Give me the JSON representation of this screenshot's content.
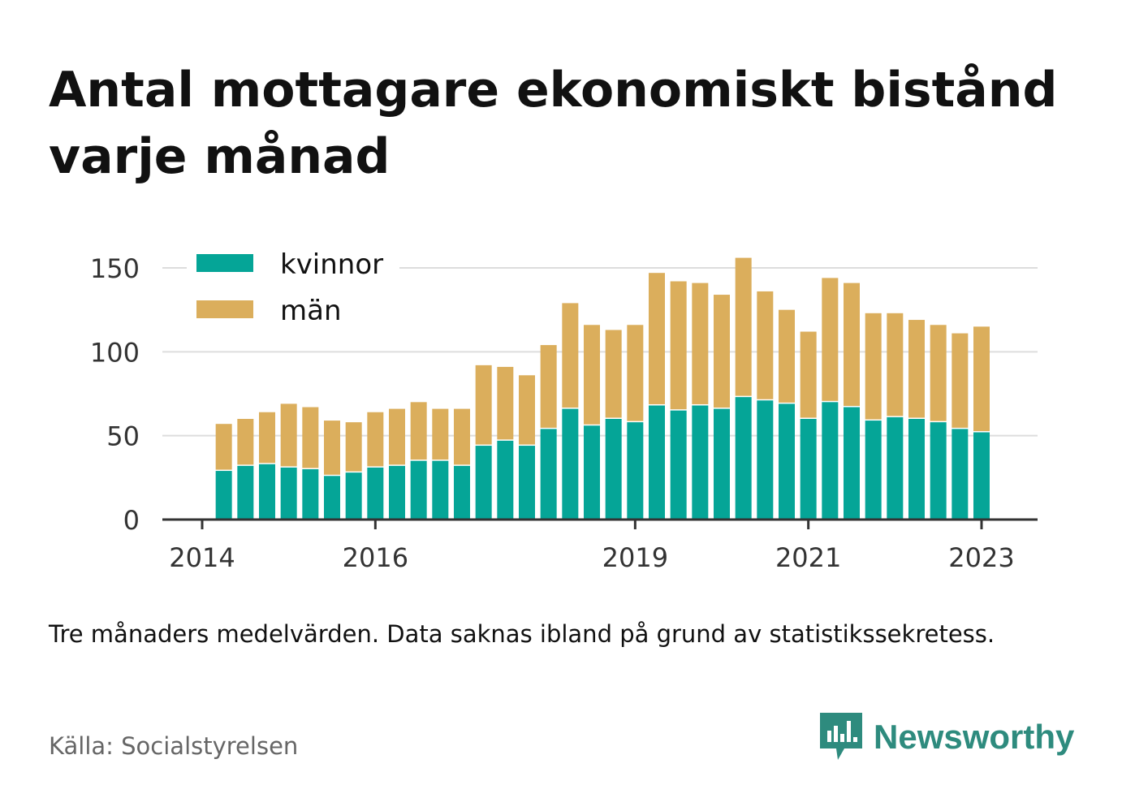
{
  "title": "Antal mottagare ekonomiskt bistånd varje månad",
  "note": "Tre månaders medelvärden. Data saknas ibland på grund av statistikssekretess.",
  "source": "Källa: Socialstyrelsen",
  "brand": {
    "name": "Newsworthy",
    "color": "#2e8b7e",
    "icon": "newsworthy-logo-icon"
  },
  "colors": {
    "kvinnor": "#05a597",
    "man": "#dbae5c",
    "grid": "#dddddd",
    "axis": "#333333"
  },
  "chart_data": {
    "type": "bar",
    "stacked": true,
    "title": "Antal mottagare ekonomiskt bistånd varje månad",
    "xlabel": "",
    "ylabel": "",
    "x_ticks": [
      "2014",
      "2016",
      "2019",
      "2021",
      "2023"
    ],
    "x_tick_positions": [
      2014.0,
      2016.0,
      2019.0,
      2021.0,
      2023.0
    ],
    "xlim": [
      2013.5,
      2023.65
    ],
    "y_ticks": [
      0,
      50,
      100,
      150
    ],
    "ylim": [
      0,
      160
    ],
    "grid": true,
    "legend": "top-left",
    "x": [
      2014.25,
      2014.5,
      2014.75,
      2015.0,
      2015.25,
      2015.5,
      2015.75,
      2016.0,
      2016.25,
      2016.5,
      2016.75,
      2017.0,
      2017.25,
      2017.5,
      2017.75,
      2018.0,
      2018.25,
      2018.5,
      2018.75,
      2019.0,
      2019.25,
      2019.5,
      2019.75,
      2020.0,
      2020.25,
      2020.5,
      2020.75,
      2021.0,
      2021.25,
      2021.5,
      2021.75,
      2022.0,
      2022.25,
      2022.5,
      2022.75,
      2023.0
    ],
    "series": [
      {
        "name": "kvinnor",
        "values": [
          29,
          32,
          33,
          31,
          30,
          26,
          28,
          31,
          32,
          35,
          35,
          32,
          44,
          47,
          44,
          54,
          66,
          56,
          60,
          58,
          68,
          65,
          68,
          66,
          73,
          71,
          69,
          60,
          70,
          67,
          59,
          61,
          60,
          58,
          54,
          52
        ]
      },
      {
        "name": "män",
        "values": [
          28,
          28,
          31,
          38,
          37,
          33,
          30,
          33,
          34,
          35,
          31,
          34,
          48,
          44,
          42,
          50,
          63,
          60,
          53,
          58,
          79,
          77,
          73,
          68,
          83,
          65,
          56,
          52,
          74,
          74,
          64,
          62,
          59,
          58,
          57,
          63
        ]
      }
    ]
  }
}
